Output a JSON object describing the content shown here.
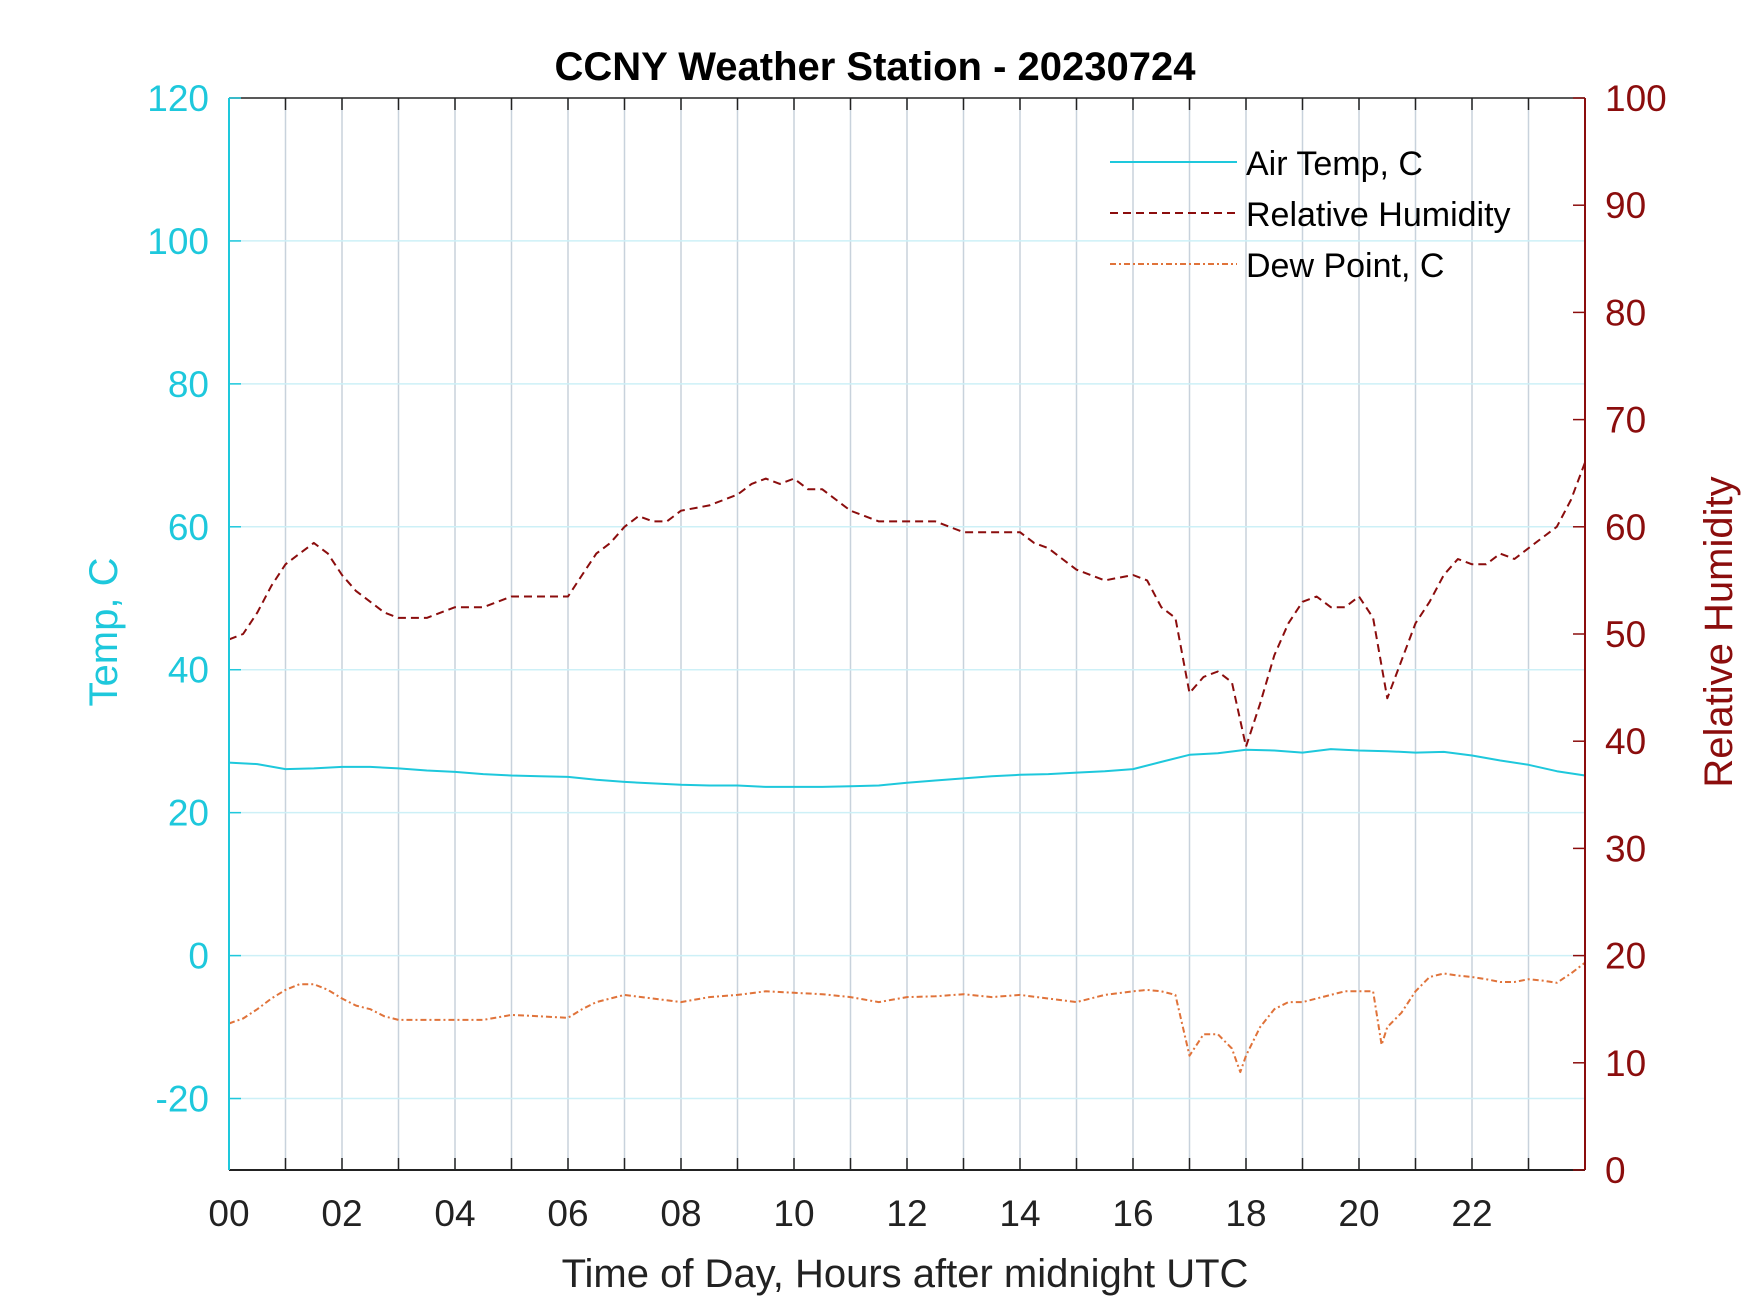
{
  "chart_data": {
    "type": "line",
    "title": "CCNY Weather Station - 20230724",
    "xlabel": "Time of Day, Hours after midnight UTC",
    "ylabel_left": "Temp, C",
    "ylabel_right": "Relative Humidity",
    "xlim": [
      0,
      24
    ],
    "ylim_left": [
      -30,
      120
    ],
    "ylim_right": [
      0,
      100
    ],
    "x_ticks": [
      0,
      2,
      4,
      6,
      8,
      10,
      12,
      14,
      16,
      18,
      20,
      22
    ],
    "x_tick_labels": [
      "00",
      "02",
      "04",
      "06",
      "08",
      "10",
      "12",
      "14",
      "16",
      "18",
      "20",
      "22"
    ],
    "y_ticks_left": [
      -20,
      0,
      20,
      40,
      60,
      80,
      100,
      120
    ],
    "y_tick_labels_left": [
      "-20",
      "0",
      "20",
      "40",
      "60",
      "80",
      "100",
      "120"
    ],
    "y_ticks_right": [
      0,
      10,
      20,
      30,
      40,
      50,
      60,
      70,
      80,
      90,
      100
    ],
    "y_tick_labels_right": [
      "0",
      "10",
      "20",
      "30",
      "40",
      "50",
      "60",
      "70",
      "80",
      "90",
      "100"
    ],
    "grid": true,
    "legend_position": "top-right",
    "colors": {
      "left_axis": "#1ec8dc",
      "right_axis": "#8b0d0d",
      "air_temp": "#1ec8dc",
      "rh": "#8b0d0d",
      "dew_point": "#e0733a",
      "grid_vertical": "#c8d2dc",
      "grid_horizontal": "#cdf0f7"
    },
    "series": [
      {
        "name": "Air Temp, C",
        "axis": "left",
        "style": "solid",
        "x": [
          0,
          0.5,
          1,
          1.5,
          2,
          2.5,
          3,
          3.5,
          4,
          4.5,
          5,
          5.5,
          6,
          6.5,
          7,
          7.5,
          8,
          8.5,
          9,
          9.5,
          10,
          10.5,
          11,
          11.5,
          12,
          12.5,
          13,
          13.5,
          14,
          14.5,
          15,
          15.5,
          16,
          16.5,
          17,
          17.5,
          18,
          18.5,
          19,
          19.5,
          20,
          20.5,
          21,
          21.5,
          22,
          22.5,
          23,
          23.5,
          24
        ],
        "values": [
          27,
          26.8,
          26.1,
          26.2,
          26.4,
          26.4,
          26.2,
          25.9,
          25.7,
          25.4,
          25.2,
          25.1,
          25,
          24.6,
          24.3,
          24.1,
          23.9,
          23.8,
          23.8,
          23.6,
          23.6,
          23.6,
          23.7,
          23.8,
          24.2,
          24.5,
          24.8,
          25.1,
          25.3,
          25.4,
          25.6,
          25.8,
          26.1,
          27.1,
          28.1,
          28.3,
          28.8,
          28.7,
          28.4,
          28.9,
          28.7,
          28.6,
          28.4,
          28.5,
          28,
          27.3,
          26.7,
          25.8,
          25.2
        ]
      },
      {
        "name": "Relative Humidity",
        "axis": "right",
        "style": "dashed",
        "x": [
          0,
          0.25,
          0.5,
          0.75,
          1,
          1.25,
          1.5,
          1.75,
          2,
          2.25,
          2.5,
          2.75,
          3,
          3.5,
          4,
          4.5,
          5,
          5.5,
          6,
          6.25,
          6.5,
          6.75,
          7,
          7.25,
          7.5,
          7.75,
          8,
          8.5,
          9,
          9.25,
          9.5,
          9.75,
          10,
          10.25,
          10.5,
          10.75,
          11,
          11.5,
          12,
          12.5,
          13,
          13.5,
          14,
          14.25,
          14.5,
          14.75,
          15,
          15.5,
          16,
          16.25,
          16.5,
          16.75,
          17,
          17.25,
          17.5,
          17.75,
          18,
          18.25,
          18.5,
          18.75,
          19,
          19.25,
          19.5,
          19.75,
          20,
          20.25,
          20.5,
          20.75,
          21,
          21.25,
          21.5,
          21.75,
          22,
          22.25,
          22.5,
          22.75,
          23,
          23.25,
          23.5,
          23.75,
          24
        ],
        "values": [
          49.5,
          50,
          52,
          54.5,
          56.5,
          57.5,
          58.5,
          57.5,
          55.5,
          54,
          53,
          52,
          51.5,
          51.5,
          52.5,
          52.5,
          53.5,
          53.5,
          53.5,
          55.5,
          57.5,
          58.5,
          60,
          61,
          60.5,
          60.5,
          61.5,
          62,
          63,
          64,
          64.5,
          64,
          64.5,
          63.5,
          63.5,
          62.5,
          61.5,
          60.5,
          60.5,
          60.5,
          59.5,
          59.5,
          59.5,
          58.5,
          58,
          57,
          56,
          55,
          55.5,
          55,
          52.5,
          51.5,
          44.5,
          46,
          46.5,
          45.5,
          39.5,
          43.5,
          48,
          51,
          53,
          53.5,
          52.5,
          52.5,
          53.5,
          51.5,
          44,
          47.5,
          51,
          53,
          55.5,
          57,
          56.5,
          56.5,
          57.5,
          57,
          58,
          59,
          60,
          62.5,
          66
        ]
      },
      {
        "name": "Dew Point, C",
        "axis": "left",
        "style": "dash-dot",
        "x": [
          0,
          0.25,
          0.5,
          0.75,
          1,
          1.25,
          1.5,
          1.75,
          2,
          2.25,
          2.5,
          2.75,
          3,
          3.5,
          4,
          4.5,
          5,
          5.5,
          6,
          6.25,
          6.5,
          6.75,
          7,
          7.5,
          8,
          8.5,
          9,
          9.5,
          10,
          10.5,
          11,
          11.5,
          12,
          12.5,
          13,
          13.5,
          14,
          14.5,
          15,
          15.5,
          16,
          16.25,
          16.5,
          16.75,
          17,
          17.25,
          17.5,
          17.75,
          17.9,
          18,
          18.25,
          18.5,
          18.75,
          19,
          19.25,
          19.5,
          19.75,
          20,
          20.25,
          20.4,
          20.5,
          20.75,
          21,
          21.25,
          21.5,
          21.75,
          22,
          22.25,
          22.5,
          22.75,
          23,
          23.25,
          23.5,
          23.75,
          24
        ],
        "values": [
          -9.5,
          -8.8,
          -7.5,
          -6,
          -4.8,
          -4,
          -4,
          -4.8,
          -6,
          -7,
          -7.5,
          -8.5,
          -9,
          -9,
          -9,
          -9,
          -8.3,
          -8.5,
          -8.7,
          -7.5,
          -6.5,
          -6,
          -5.5,
          -6,
          -6.5,
          -5.8,
          -5.5,
          -5,
          -5.2,
          -5.4,
          -5.8,
          -6.5,
          -5.8,
          -5.7,
          -5.4,
          -5.8,
          -5.5,
          -6,
          -6.5,
          -5.5,
          -5,
          -4.8,
          -5,
          -5.5,
          -14,
          -11,
          -11,
          -13,
          -16.3,
          -14,
          -10,
          -7.5,
          -6.5,
          -6.5,
          -6,
          -5.5,
          -5,
          -5,
          -5,
          -12.5,
          -10,
          -8,
          -5,
          -3,
          -2.5,
          -2.8,
          -3,
          -3.3,
          -3.7,
          -3.7,
          -3.3,
          -3.5,
          -3.8,
          -2.5,
          -1
        ]
      }
    ]
  }
}
